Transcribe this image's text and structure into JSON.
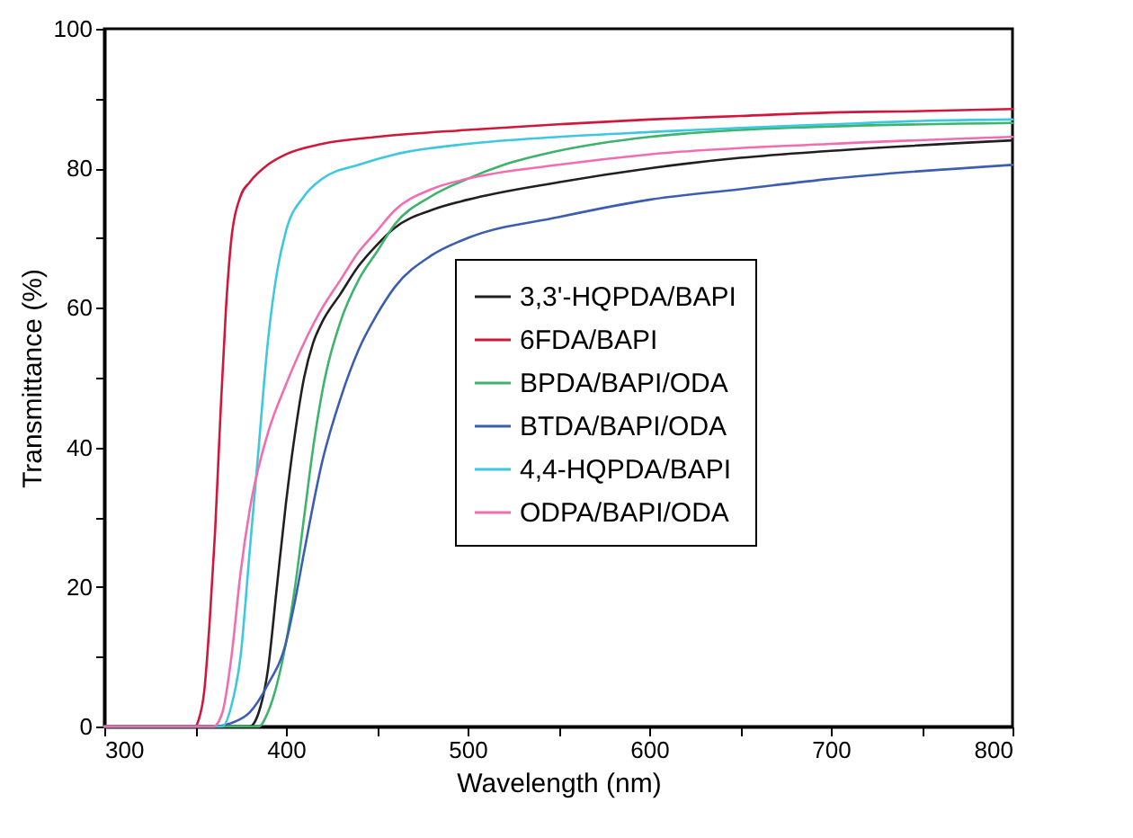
{
  "chart_data": {
    "type": "line",
    "xlabel": "Wavelength (nm)",
    "ylabel": "Transmittance (%)",
    "xlim": [
      300,
      800
    ],
    "ylim": [
      0,
      100
    ],
    "xticks": [
      300,
      {
        "value": 350,
        "label": null
      },
      400,
      {
        "value": 450,
        "label": null
      },
      500,
      {
        "value": 550,
        "label": null
      },
      600,
      {
        "value": 650,
        "label": null
      },
      700,
      {
        "value": 750,
        "label": null
      },
      800
    ],
    "yticks": [
      0,
      {
        "value": 10,
        "label": null
      },
      20,
      {
        "value": 30,
        "label": null
      },
      40,
      {
        "value": 50,
        "label": null
      },
      60,
      {
        "value": 70,
        "label": null
      },
      80,
      {
        "value": 90,
        "label": null
      },
      100
    ],
    "grid": false,
    "legend": "right",
    "line_style": "solid",
    "marker": "none",
    "series": [
      {
        "name": "3,3'-HQPDA/BAPI",
        "color": "#231f20",
        "x": [
          300,
          380,
          385,
          390,
          395,
          400,
          405,
          410,
          415,
          420,
          430,
          440,
          450,
          460,
          480,
          500,
          550,
          600,
          650,
          700,
          800
        ],
        "values": [
          0,
          0,
          2,
          8,
          20,
          32,
          42,
          50,
          55,
          58,
          62,
          66,
          69,
          71.5,
          74,
          75.5,
          78,
          80,
          81.5,
          82.5,
          84
        ]
      },
      {
        "name": "6FDA/BAPI",
        "color": "#d0183c",
        "x": [
          300,
          350,
          352,
          355,
          358,
          361,
          364,
          367,
          370,
          375,
          380,
          390,
          400,
          420,
          450,
          500,
          550,
          600,
          650,
          700,
          750,
          800
        ],
        "values": [
          0,
          0,
          1,
          5,
          15,
          28,
          45,
          60,
          70,
          76,
          78,
          80.5,
          82,
          83.5,
          84.5,
          85.5,
          86.3,
          87,
          87.5,
          88,
          88.2,
          88.5
        ]
      },
      {
        "name": "BPDA/BAPI/ODA",
        "color": "#3db36b",
        "x": [
          300,
          385,
          390,
          395,
          400,
          405,
          410,
          415,
          420,
          430,
          440,
          450,
          460,
          480,
          500,
          520,
          550,
          600,
          650,
          700,
          800
        ],
        "values": [
          0,
          0,
          2,
          6,
          12,
          20,
          30,
          40,
          48,
          58,
          64,
          68,
          72,
          76,
          78.5,
          80.5,
          82.5,
          84.5,
          85.5,
          86,
          86.5
        ]
      },
      {
        "name": "BTDA/BAPI/ODA",
        "color": "#3d5eb0",
        "x": [
          300,
          360,
          370,
          380,
          390,
          400,
          405,
          410,
          420,
          430,
          440,
          450,
          460,
          480,
          500,
          550,
          600,
          650,
          700,
          800
        ],
        "values": [
          0,
          0,
          0.5,
          2,
          6,
          12,
          18,
          25,
          38,
          47,
          54,
          59,
          63,
          67.5,
          70,
          73,
          75.5,
          77,
          78.5,
          80.5
        ]
      },
      {
        "name": "4,4-HQPDA/BAPI",
        "color": "#3ec8e0",
        "x": [
          300,
          365,
          370,
          375,
          380,
          385,
          390,
          395,
          400,
          410,
          420,
          440,
          460,
          500,
          550,
          600,
          650,
          700,
          750,
          800
        ],
        "values": [
          0,
          0,
          3,
          10,
          25,
          40,
          55,
          65,
          71,
          76,
          78.5,
          80.5,
          82,
          83.5,
          84.5,
          85.2,
          85.8,
          86.3,
          86.8,
          87
        ]
      },
      {
        "name": "ODPA/BAPI/ODA",
        "color": "#f06eb0",
        "x": [
          300,
          360,
          365,
          370,
          375,
          380,
          390,
          400,
          410,
          420,
          430,
          440,
          450,
          460,
          480,
          500,
          550,
          600,
          700,
          800
        ],
        "values": [
          0,
          0,
          2,
          10,
          22,
          31,
          42,
          49,
          55,
          60,
          64,
          68,
          71,
          74,
          77,
          78.5,
          80.5,
          82,
          83.5,
          84.5
        ]
      }
    ]
  }
}
